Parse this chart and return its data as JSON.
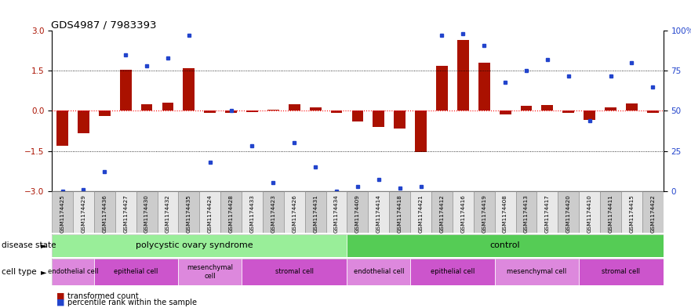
{
  "title": "GDS4987 / 7983393",
  "samples": [
    "GSM1174425",
    "GSM1174429",
    "GSM1174436",
    "GSM1174427",
    "GSM1174430",
    "GSM1174432",
    "GSM1174435",
    "GSM1174424",
    "GSM1174428",
    "GSM1174433",
    "GSM1174423",
    "GSM1174426",
    "GSM1174431",
    "GSM1174434",
    "GSM1174409",
    "GSM1174414",
    "GSM1174418",
    "GSM1174421",
    "GSM1174412",
    "GSM1174416",
    "GSM1174419",
    "GSM1174408",
    "GSM1174413",
    "GSM1174417",
    "GSM1174420",
    "GSM1174410",
    "GSM1174411",
    "GSM1174415",
    "GSM1174422"
  ],
  "bar_values": [
    -1.3,
    -0.85,
    -0.2,
    1.55,
    0.25,
    0.3,
    1.6,
    -0.08,
    -0.06,
    -0.05,
    0.05,
    0.25,
    0.12,
    -0.08,
    -0.4,
    -0.6,
    -0.65,
    -1.55,
    1.7,
    2.65,
    1.8,
    -0.12,
    0.18,
    0.22,
    -0.08,
    -0.35,
    0.12,
    0.27,
    -0.08
  ],
  "dot_values": [
    0,
    1,
    12,
    85,
    78,
    83,
    97,
    18,
    50,
    28,
    5,
    30,
    15,
    0,
    3,
    7,
    2,
    3,
    97,
    98,
    91,
    68,
    75,
    82,
    72,
    44,
    72,
    80,
    65
  ],
  "bar_color": "#aa1100",
  "dot_color": "#2244cc",
  "bar_ylim": [
    -3,
    3
  ],
  "dot_ylim": [
    0,
    100
  ],
  "yticks_left": [
    -3,
    -1.5,
    0,
    1.5,
    3
  ],
  "yticks_right": [
    0,
    25,
    50,
    75,
    100
  ],
  "pcos_color": "#99ee99",
  "ctrl_color": "#55cc55",
  "cell_colors": [
    "#ee99ee",
    "#cc55cc",
    "#ee99ee",
    "#cc55cc",
    "#ee99ee",
    "#cc55cc",
    "#ee99ee",
    "#cc55cc"
  ],
  "pcos_cells": [
    {
      "label": "endothelial cell",
      "start": 0,
      "end": 2,
      "color": "#dd88dd"
    },
    {
      "label": "epithelial cell",
      "start": 2,
      "end": 6,
      "color": "#cc55cc"
    },
    {
      "label": "mesenchymal\ncell",
      "start": 6,
      "end": 9,
      "color": "#dd88dd"
    },
    {
      "label": "stromal cell",
      "start": 9,
      "end": 14,
      "color": "#cc55cc"
    }
  ],
  "ctrl_cells": [
    {
      "label": "endothelial cell",
      "start": 14,
      "end": 17,
      "color": "#dd88dd"
    },
    {
      "label": "epithelial cell",
      "start": 17,
      "end": 21,
      "color": "#cc55cc"
    },
    {
      "label": "mesenchymal cell",
      "start": 21,
      "end": 25,
      "color": "#dd88dd"
    },
    {
      "label": "stromal cell",
      "start": 25,
      "end": 29,
      "color": "#cc55cc"
    }
  ],
  "legend_bar_label": "transformed count",
  "legend_dot_label": "percentile rank within the sample"
}
